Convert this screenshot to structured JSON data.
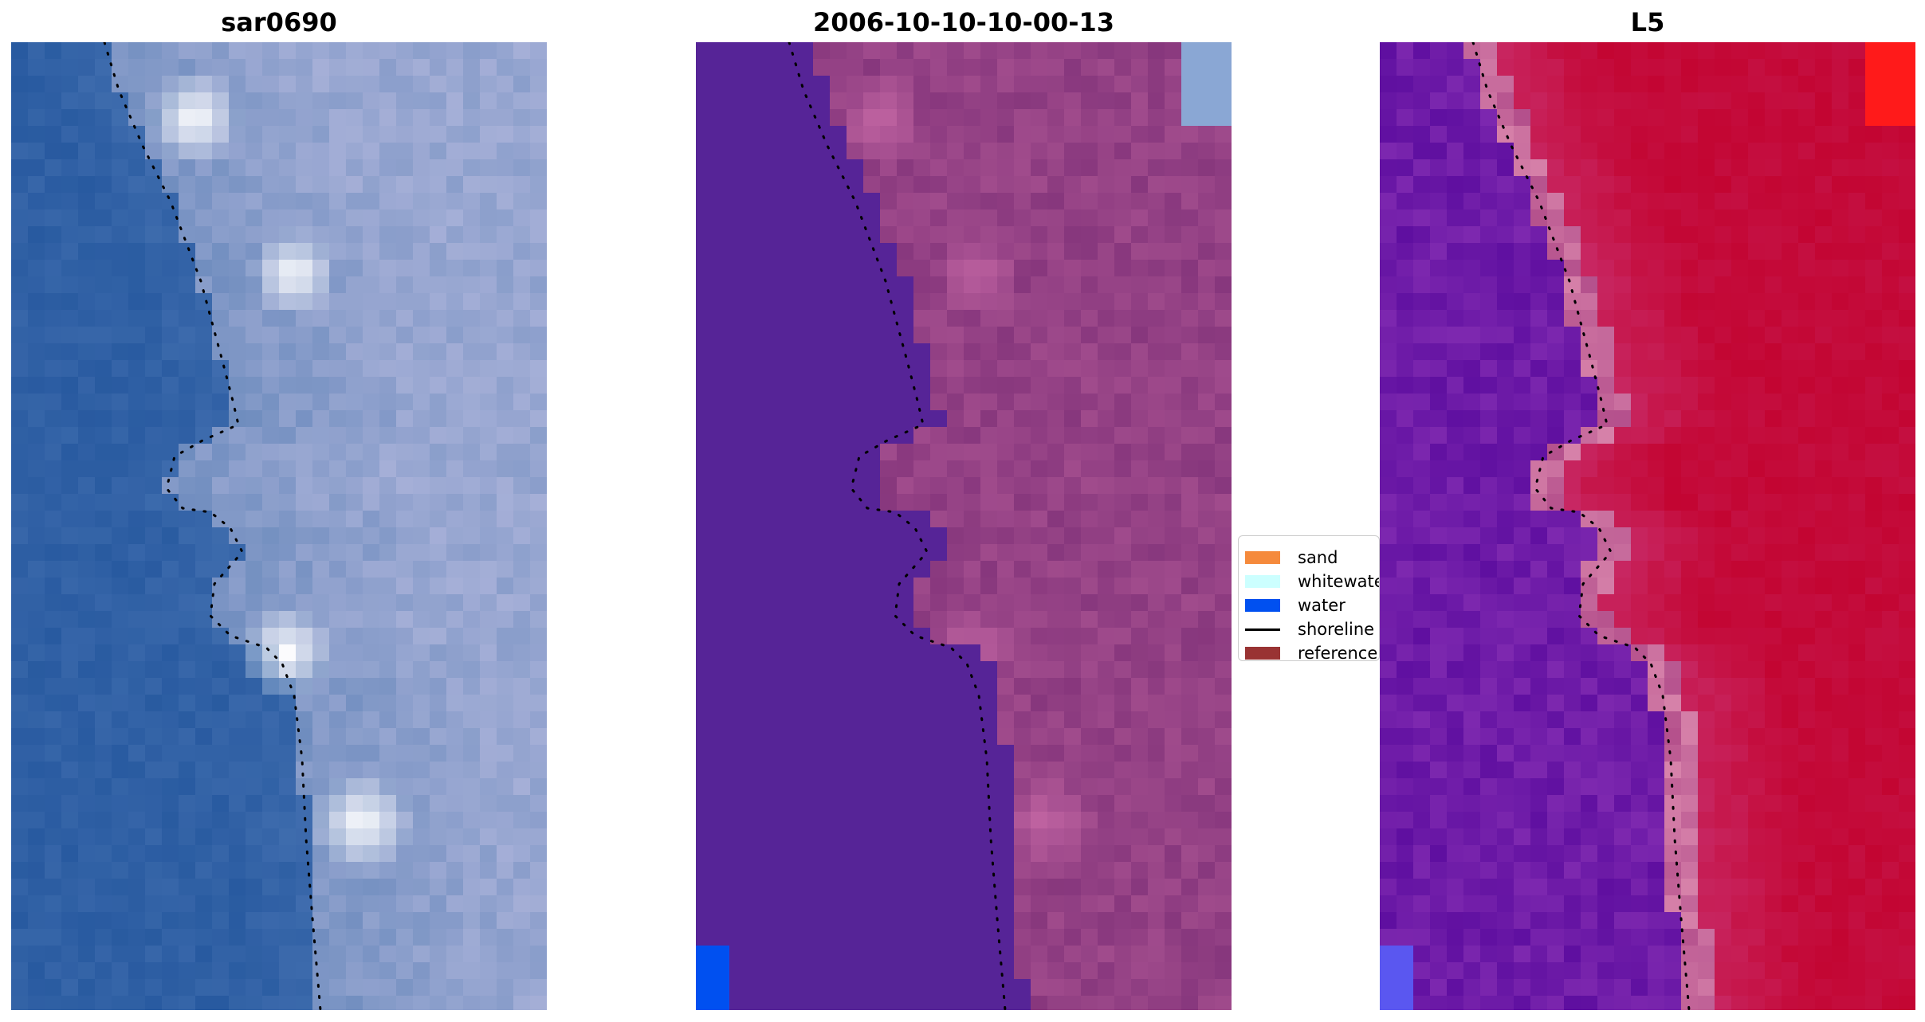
{
  "titles": {
    "left": "sar0690",
    "center": "2006-10-10-10-00-13",
    "right": "L5"
  },
  "panels": {
    "left": {
      "kind": "true-color satellite image",
      "icon": "satellite-image"
    },
    "center": {
      "kind": "classified image",
      "icon": "classification-map"
    },
    "right": {
      "kind": "index image",
      "icon": "index-map"
    }
  },
  "legend": {
    "items": [
      {
        "label": "sand",
        "color": "#f58a3c",
        "kind": "patch"
      },
      {
        "label": "whitewater",
        "color": "#ccffff",
        "kind": "patch"
      },
      {
        "label": "water",
        "color": "#0050f0",
        "kind": "patch"
      },
      {
        "label": "shoreline",
        "color": "#000000",
        "kind": "line"
      },
      {
        "label": "reference shoreline",
        "color": "#993333",
        "kind": "patch"
      }
    ]
  },
  "colors": {
    "sea_rgb": "#3a62a8",
    "land_rgb": "#8fa2c6",
    "classified_background": "#562497",
    "classified_land": "#8a3f82",
    "classified_water": "#0050f0",
    "index_low": "#6a1aa0",
    "index_high": "#c5063a",
    "shoreline": "#000000"
  }
}
